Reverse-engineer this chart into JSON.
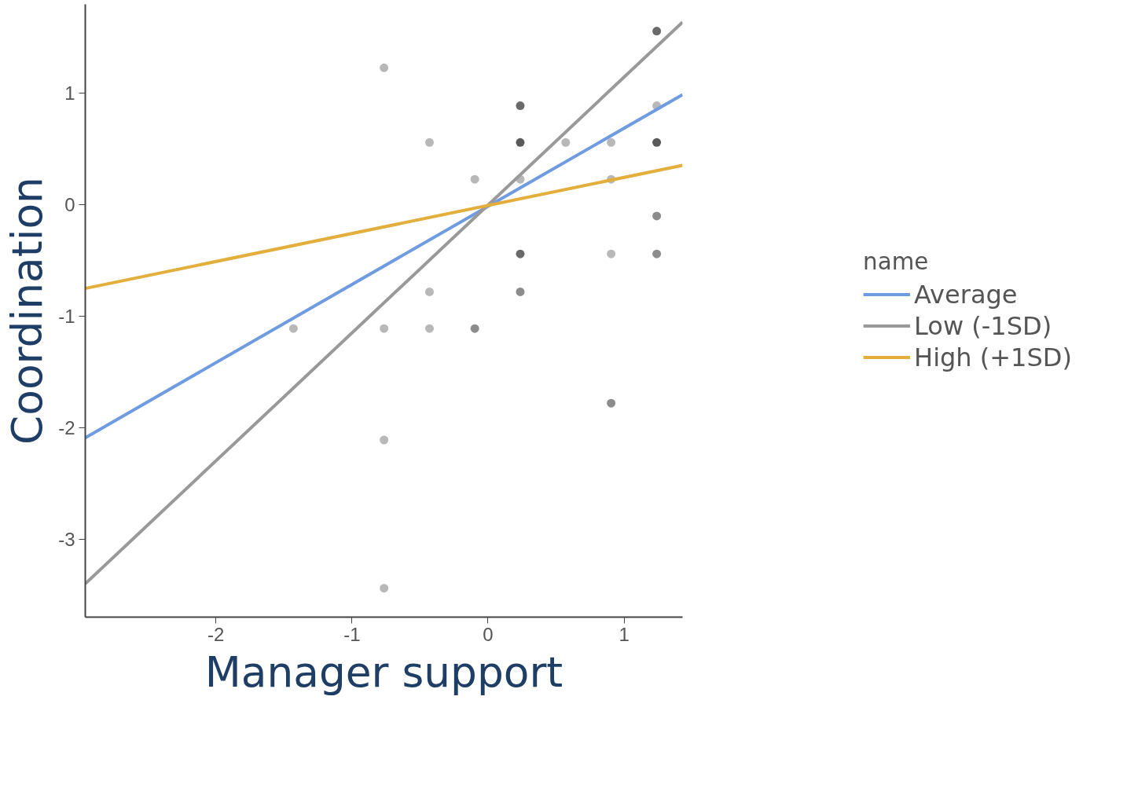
{
  "chart_data": {
    "type": "scatter",
    "xlabel": "Manager support",
    "ylabel": "Coordination",
    "legend_title": "name",
    "xlim": [
      -2.96,
      1.43
    ],
    "ylim": [
      -3.7,
      1.8
    ],
    "xticks": [
      -2,
      -1,
      0,
      1
    ],
    "yticks": [
      -3,
      -2,
      -1,
      0,
      1
    ],
    "grid": false,
    "legend": "right",
    "marker": "none",
    "line_style": "solid",
    "series": [
      {
        "marker": "circle",
        "x": [
          -0.764,
          1.24,
          0.237,
          1.24,
          -0.43,
          0.237,
          0.571,
          0.905,
          1.24,
          -0.097,
          0.237,
          0.905,
          1.24,
          0.237,
          0.905,
          1.24,
          -0.43,
          0.237,
          -1.43,
          -0.764,
          -0.43,
          -0.097,
          0.905,
          -0.764,
          -0.764
        ],
        "values": [
          1.23,
          1.56,
          0.89,
          0.89,
          0.56,
          0.56,
          0.56,
          0.56,
          0.56,
          0.23,
          0.23,
          0.23,
          -0.1,
          -0.44,
          -0.44,
          -0.44,
          -0.78,
          -0.78,
          -1.11,
          -1.11,
          -1.11,
          -1.11,
          -1.78,
          -2.11,
          -3.44
        ],
        "colors": [
          "#b8b8b8",
          "#6a6a6a",
          "#6a6a6a",
          "#b8b8b8",
          "#b8b8b8",
          "#5a5a5a",
          "#b8b8b8",
          "#b8b8b8",
          "#5a5a5a",
          "#b8b8b8",
          "#b8b8b8",
          "#b8b8b8",
          "#8c8c8c",
          "#6a6a6a",
          "#b8b8b8",
          "#8c8c8c",
          "#b8b8b8",
          "#8c8c8c",
          "#b8b8b8",
          "#b8b8b8",
          "#b8b8b8",
          "#8c8c8c",
          "#8c8c8c",
          "#b8b8b8",
          "#b8b8b8"
        ]
      },
      {
        "type": "line",
        "name": "Average",
        "color": "#6f9be0",
        "x": [
          -2.96,
          1.43
        ],
        "values": [
          -2.09,
          0.99
        ]
      },
      {
        "type": "line",
        "name": "Low (-1SD)",
        "color": "#999999",
        "x": [
          -2.96,
          1.43
        ],
        "values": [
          -3.4,
          1.64
        ]
      },
      {
        "type": "line",
        "name": "High (+1SD)",
        "color": "#e3ae3c",
        "x": [
          -2.96,
          1.43
        ],
        "values": [
          -0.75,
          0.355
        ]
      }
    ]
  }
}
